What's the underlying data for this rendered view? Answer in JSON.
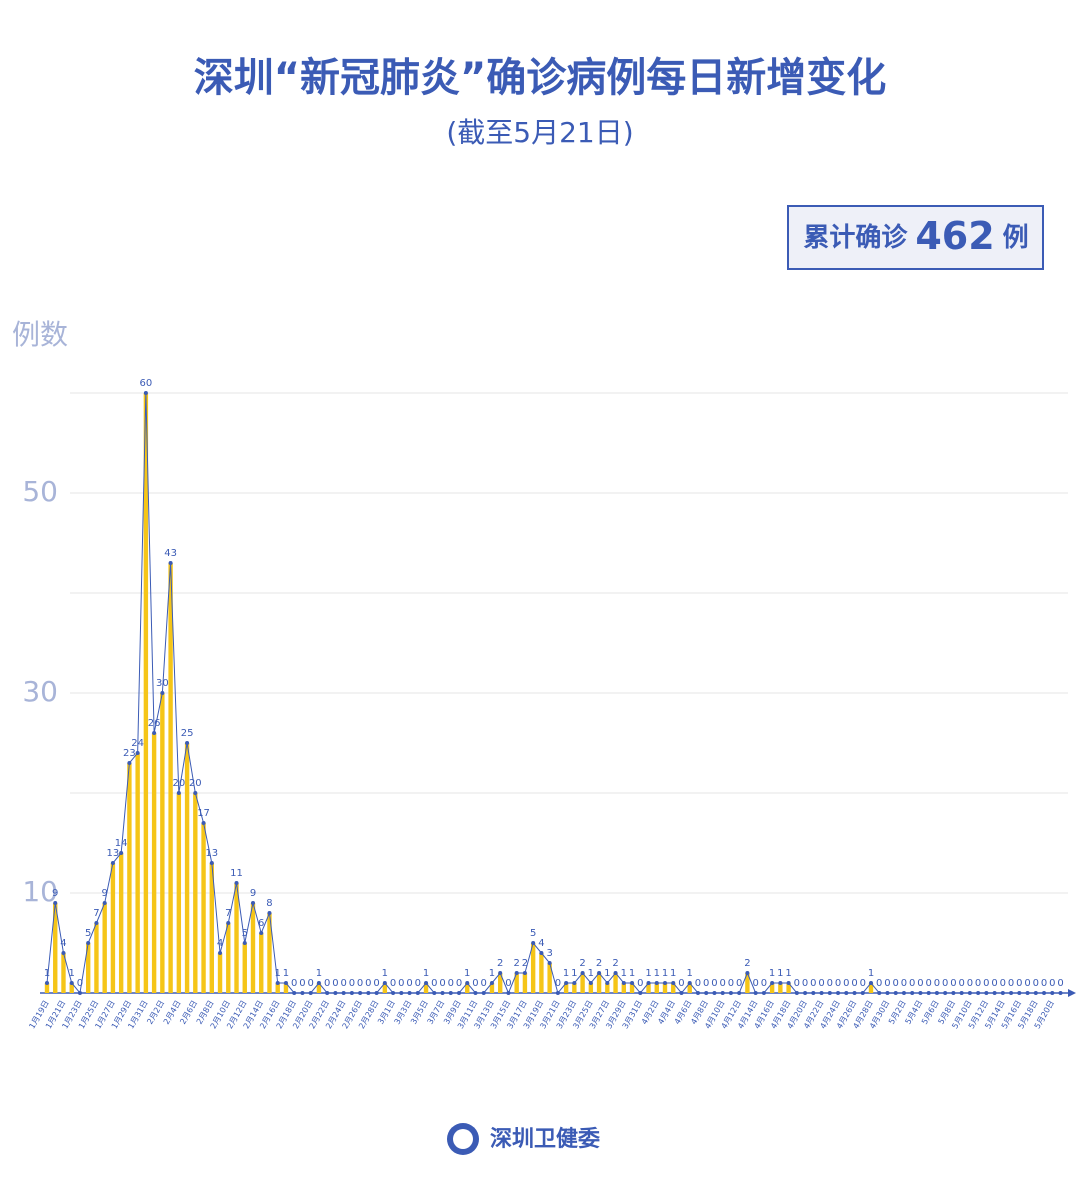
{
  "chart_data": {
    "type": "line",
    "title": "深圳“新冠肺炎”确诊病例每日新增变化",
    "subtitle": "(截至5月21日)",
    "total_prefix": "累计确诊",
    "total": 462,
    "total_suffix": "例",
    "ylabel": "例数",
    "source": "深圳卫健委",
    "ylim": [
      0,
      60
    ],
    "yticks": [
      10,
      30,
      50
    ],
    "gridlines": [
      10,
      20,
      30,
      40,
      50,
      60
    ],
    "grid": true,
    "line_color": "#3b5bb5",
    "bar_color": "#f5c518",
    "categories": [
      "1月19日",
      null,
      "1月21日",
      null,
      "1月23日",
      null,
      "1月25日",
      null,
      "1月27日",
      null,
      "1月29日",
      null,
      "1月31日",
      null,
      "2月2日",
      null,
      "2月4日",
      null,
      "2月6日",
      null,
      "2月8日",
      null,
      "2月10日",
      null,
      "2月12日",
      null,
      "2月14日",
      null,
      "2月16日",
      null,
      "2月18日",
      null,
      "2月20日",
      null,
      "2月22日",
      null,
      "2月24日",
      null,
      "2月26日",
      null,
      "2月28日",
      null,
      "3月1日",
      null,
      "3月3日",
      null,
      "3月5日",
      null,
      "3月7日",
      null,
      "3月9日",
      null,
      "3月11日",
      null,
      "3月13日",
      null,
      "3月15日",
      null,
      "3月17日",
      null,
      "3月19日",
      null,
      "3月21日",
      null,
      "3月23日",
      null,
      "3月25日",
      null,
      "3月27日",
      null,
      "3月29日",
      null,
      "3月31日",
      null,
      "4月2日",
      null,
      "4月4日",
      null,
      "4月6日",
      null,
      "4月8日",
      null,
      "4月10日",
      null,
      "4月12日",
      null,
      "4月14日",
      null,
      "4月16日",
      null,
      "4月18日",
      null,
      "4月20日",
      null,
      "4月22日",
      null,
      "4月24日",
      null,
      "4月26日",
      null,
      "4月28日",
      null,
      "4月30日",
      null,
      "5月2日",
      null,
      "5月4日",
      null,
      "5月6日",
      null,
      "5月8日",
      null,
      "5月10日",
      null,
      "5月12日",
      null,
      "5月14日",
      null,
      "5月16日",
      null,
      "5月18日",
      null,
      "5月20日",
      null
    ],
    "values": [
      1,
      9,
      4,
      1,
      0,
      5,
      7,
      9,
      13,
      14,
      23,
      24,
      60,
      26,
      30,
      43,
      20,
      25,
      20,
      17,
      13,
      4,
      7,
      11,
      5,
      9,
      6,
      8,
      1,
      1,
      0,
      0,
      0,
      1,
      0,
      0,
      0,
      0,
      0,
      0,
      0,
      1,
      0,
      0,
      0,
      0,
      1,
      0,
      0,
      0,
      0,
      1,
      0,
      0,
      1,
      2,
      0,
      2,
      2,
      5,
      4,
      3,
      0,
      1,
      1,
      2,
      1,
      2,
      1,
      2,
      1,
      1,
      0,
      1,
      1,
      1,
      1,
      0,
      1,
      0,
      0,
      0,
      0,
      0,
      0,
      2,
      0,
      0,
      1,
      1,
      1,
      0,
      0,
      0,
      0,
      0,
      0,
      0,
      0,
      0,
      1,
      0,
      0,
      0,
      0,
      0,
      0,
      0,
      0,
      0,
      0,
      0,
      0,
      0,
      0,
      0,
      0,
      0,
      0,
      0,
      0,
      0,
      0,
      0
    ]
  }
}
